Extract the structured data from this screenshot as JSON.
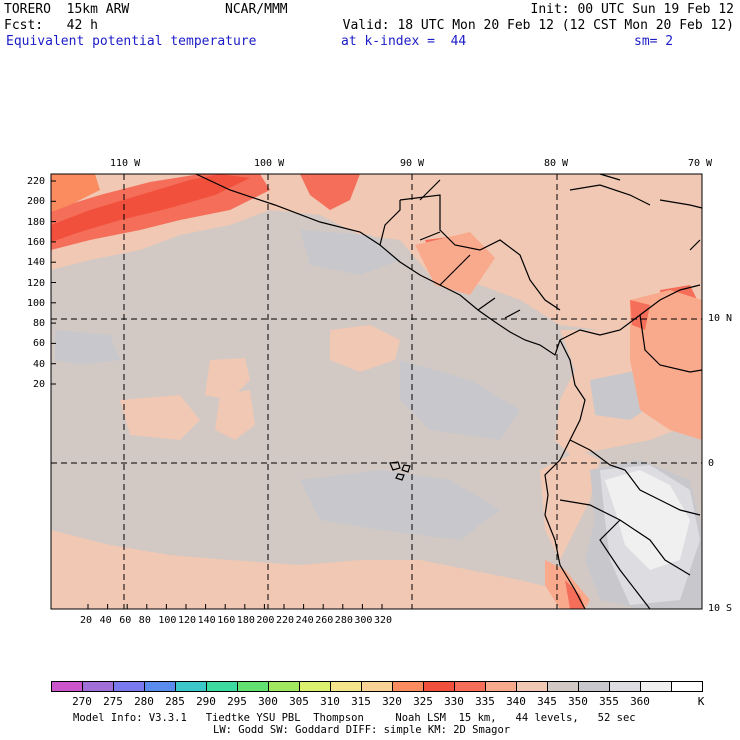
{
  "header": {
    "left_line1": "TORERO  15km ARW",
    "center_line1": "NCAR/MMM",
    "right_line1": "Init: 00 UTC Sun 19 Feb 12",
    "left_line2": "Fcst:   42 h",
    "right_line2": "Valid: 18 UTC Mon 20 Feb 12 (12 CST Mon 20 Feb 12)",
    "field_name": "Equivalent potential temperature",
    "level_text": "at k-index =  44",
    "smoothing_text": "sm= 2"
  },
  "map": {
    "lon_labels": [
      "110 W",
      "100 W",
      "90 W",
      "80 W",
      "70 W"
    ],
    "lat_labels": [
      "10 N",
      "0",
      "10 S"
    ],
    "y_ticks": [
      "220",
      "200",
      "180",
      "160",
      "140",
      "120",
      "100",
      "80",
      "60",
      "40",
      "20"
    ],
    "x_ticks": [
      "20",
      "40",
      "60",
      "80",
      "100",
      "120",
      "140",
      "160",
      "180",
      "200",
      "220",
      "240",
      "260",
      "280",
      "300",
      "320"
    ]
  },
  "colorbar": {
    "labels": [
      "270",
      "275",
      "280",
      "285",
      "290",
      "295",
      "300",
      "305",
      "310",
      "315",
      "320",
      "325",
      "330",
      "335",
      "340",
      "345",
      "350",
      "355",
      "360"
    ],
    "unit": "K",
    "colors": [
      "#cc55cc",
      "#a070d8",
      "#7a7aee",
      "#5a8cee",
      "#3cc8c8",
      "#3cd9a0",
      "#62e070",
      "#a0e860",
      "#dcf070",
      "#f5e68c",
      "#fad296",
      "#fa8c60",
      "#f0503c",
      "#f56e5a",
      "#faaa8c",
      "#f0c8b4",
      "#d2c8c4",
      "#c8c8cc",
      "#dcdce1",
      "#f0f0f0",
      "#ffffff"
    ]
  },
  "footer": {
    "line1": "Model Info: V3.3.1   Tiedtke YSU PBL  Thompson     Noah LSM  15 km,   44 levels,   52 sec",
    "line2": "LW: Godd SW: Goddard DIFF: simple KM: 2D Smagor"
  }
}
